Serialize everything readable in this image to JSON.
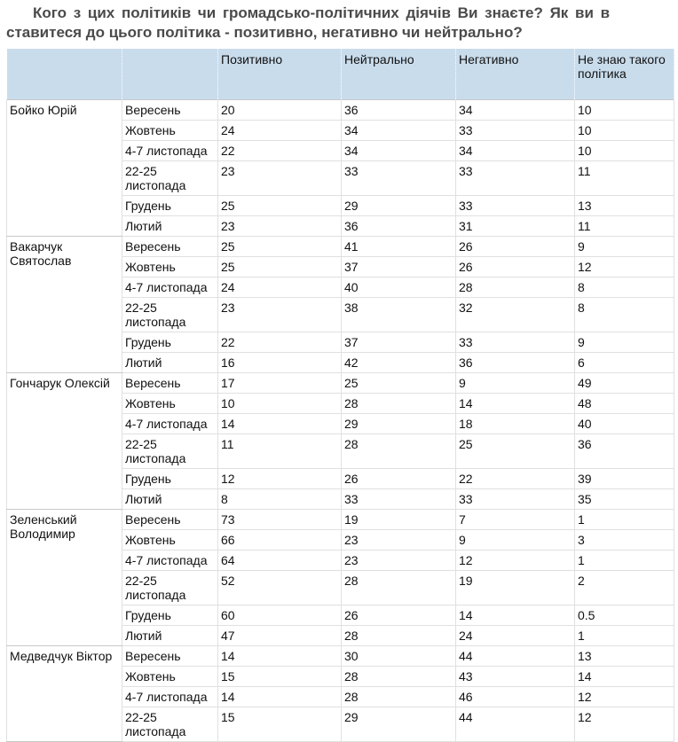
{
  "title": {
    "line1": "Кого з цих політиків чи громадсько-політичних діячів Ви знаєте? Як ви в",
    "line2": "ставитеся до цього політика - позитивно, негативно чи нейтрально?"
  },
  "table": {
    "columns": [
      "Позитивно",
      "Нейтрально",
      "Негативно",
      "Не знаю такого політика"
    ],
    "groups": [
      {
        "name": "Бойко Юрій",
        "rows": [
          {
            "period": "Вересень",
            "values": [
              20,
              36,
              34,
              10
            ]
          },
          {
            "period": "Жовтень",
            "values": [
              24,
              34,
              33,
              10
            ]
          },
          {
            "period": "4-7 листопада",
            "values": [
              22,
              34,
              34,
              10
            ]
          },
          {
            "period": "22-25 листопада",
            "values": [
              23,
              33,
              33,
              11
            ]
          },
          {
            "period": "Грудень",
            "values": [
              25,
              29,
              33,
              13
            ]
          },
          {
            "period": "Лютий",
            "values": [
              23,
              36,
              31,
              11
            ]
          }
        ]
      },
      {
        "name": "Вакарчук Святослав",
        "rows": [
          {
            "period": "Вересень",
            "values": [
              25,
              41,
              26,
              9
            ]
          },
          {
            "period": "Жовтень",
            "values": [
              25,
              37,
              26,
              12
            ]
          },
          {
            "period": "4-7 листопада",
            "values": [
              24,
              40,
              28,
              8
            ]
          },
          {
            "period": "22-25 листопада",
            "values": [
              23,
              38,
              32,
              8
            ]
          },
          {
            "period": "Грудень",
            "values": [
              22,
              37,
              33,
              9
            ]
          },
          {
            "period": "Лютий",
            "values": [
              16,
              42,
              36,
              6
            ]
          }
        ]
      },
      {
        "name": "Гончарук Олексій",
        "rows": [
          {
            "period": "Вересень",
            "values": [
              17,
              25,
              9,
              49
            ]
          },
          {
            "period": "Жовтень",
            "values": [
              10,
              28,
              14,
              48
            ]
          },
          {
            "period": "4-7 листопада",
            "values": [
              14,
              29,
              18,
              40
            ]
          },
          {
            "period": "22-25 листопада",
            "values": [
              11,
              28,
              25,
              36
            ]
          },
          {
            "period": "Грудень",
            "values": [
              12,
              26,
              22,
              39
            ]
          },
          {
            "period": "Лютий",
            "values": [
              8,
              33,
              33,
              35
            ]
          }
        ]
      },
      {
        "name": "Зеленський Володимир",
        "rows": [
          {
            "period": "Вересень",
            "values": [
              73,
              19,
              7,
              1
            ]
          },
          {
            "period": "Жовтень",
            "values": [
              66,
              23,
              9,
              3
            ]
          },
          {
            "period": "4-7 листопада",
            "values": [
              64,
              23,
              12,
              1
            ]
          },
          {
            "period": "22-25 листопада",
            "values": [
              52,
              28,
              19,
              2
            ]
          },
          {
            "period": "Грудень",
            "values": [
              60,
              26,
              14,
              0.5
            ]
          },
          {
            "period": "Лютий",
            "values": [
              47,
              28,
              24,
              1
            ]
          }
        ]
      },
      {
        "name": "Медведчук Віктор",
        "rows": [
          {
            "period": "Вересень",
            "values": [
              14,
              30,
              44,
              13
            ]
          },
          {
            "period": "Жовтень",
            "values": [
              15,
              28,
              43,
              14
            ]
          },
          {
            "period": "4-7 листопада",
            "values": [
              14,
              28,
              46,
              12
            ]
          },
          {
            "period": "22-25 листопада",
            "values": [
              15,
              29,
              44,
              12
            ]
          }
        ]
      }
    ]
  }
}
